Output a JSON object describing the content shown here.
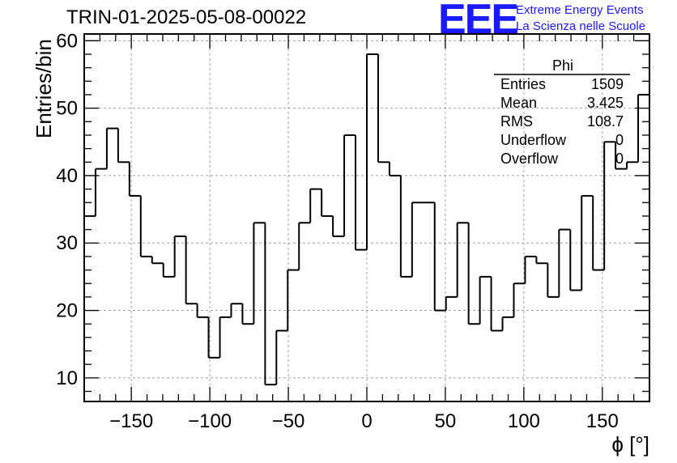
{
  "chart_data": {
    "type": "histogram",
    "title": "TRIN-01-2025-05-08-00022",
    "xlabel": "ϕ [°]",
    "ylabel": "Entries/bin",
    "xlim": [
      -180,
      180
    ],
    "ylim": [
      6.5,
      61
    ],
    "grid": true,
    "bin_edges_start": -180,
    "bin_width": 7.2,
    "values": [
      34,
      41,
      47,
      42,
      37,
      28,
      27,
      25,
      31,
      21,
      19,
      13,
      19,
      21,
      18,
      33,
      9,
      17,
      26,
      33,
      38,
      34,
      31,
      46,
      29,
      58,
      42,
      40,
      25,
      36,
      36,
      20,
      22,
      33,
      18,
      25,
      17,
      19,
      24,
      28,
      27,
      22,
      32,
      23,
      37,
      26,
      45,
      41,
      42,
      52
    ],
    "x_ticks": [
      -150,
      -100,
      -50,
      0,
      50,
      100,
      150
    ],
    "x_tick_labels": [
      "−150",
      "−100",
      "−50",
      "0",
      "50",
      "100",
      "150"
    ],
    "y_ticks": [
      10,
      20,
      30,
      40,
      50,
      60
    ],
    "y_tick_labels": [
      "10",
      "20",
      "30",
      "40",
      "50",
      "60"
    ],
    "stats": {
      "name": "Phi",
      "rows": [
        {
          "label": "Entries",
          "value": "1509"
        },
        {
          "label": "Mean",
          "value": "3.425"
        },
        {
          "label": "RMS",
          "value": "108.7"
        },
        {
          "label": "Underflow",
          "value": "0"
        },
        {
          "label": "Overflow",
          "value": "0"
        }
      ]
    }
  },
  "logo": {
    "mark": "EEE",
    "line1": "Extreme Energy Events",
    "line2": "La Scienza nelle Scuole",
    "color": "#1a1aff"
  }
}
